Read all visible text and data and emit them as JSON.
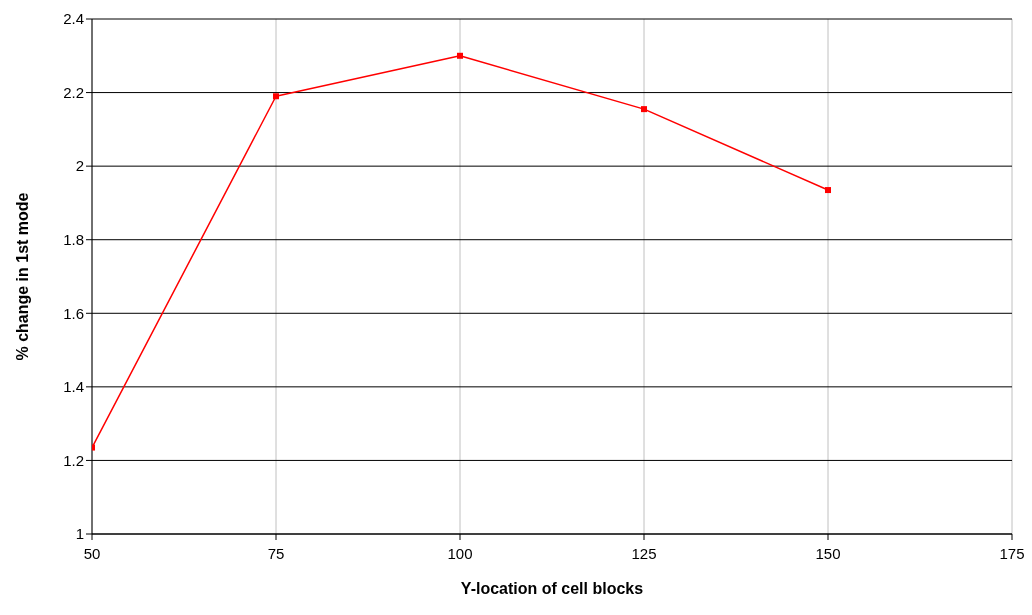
{
  "chart_data": {
    "type": "line",
    "xlabel": "Y-location of cell blocks",
    "ylabel": "% change in 1st mode",
    "x": [
      50,
      75,
      100,
      125,
      150
    ],
    "series": [
      {
        "color": "#ff0000",
        "values": [
          1.235,
          2.19,
          2.3,
          2.155,
          1.935
        ]
      }
    ],
    "xlim": [
      50,
      175
    ],
    "xticks": [
      50,
      75,
      100,
      125,
      150,
      175
    ],
    "ylim": [
      1,
      2.4
    ],
    "yticks": [
      1,
      1.2,
      1.4,
      1.6,
      1.8,
      2,
      2.2,
      2.4
    ],
    "grid": true,
    "marker": "square",
    "line_style": "solid",
    "legend": false
  }
}
